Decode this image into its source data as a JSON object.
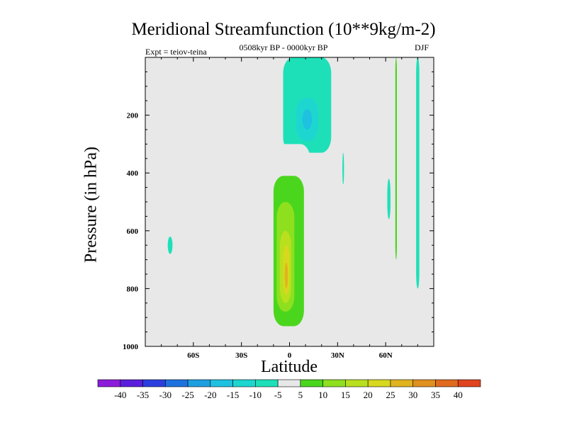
{
  "chart_data": {
    "type": "contour",
    "title": "Meridional Streamfunction (10**9kg/m-2)",
    "subtitle": "0508kyr BP - 0000kyr BP",
    "left_label": "Expt = teiov-teina",
    "right_label": "DJF",
    "xlabel": "Latitude",
    "ylabel": "Pressure (in hPa)",
    "xlim": [
      -90,
      90
    ],
    "ylim": [
      1000,
      0
    ],
    "x_ticks": [
      -60,
      -30,
      0,
      30,
      60
    ],
    "x_tick_labels": [
      "60S",
      "30S",
      "0",
      "30N",
      "60N"
    ],
    "y_ticks": [
      200,
      400,
      600,
      800,
      1000
    ],
    "y_tick_labels": [
      "200",
      "400",
      "600",
      "800",
      "1000"
    ],
    "missing_color": "#e8e8e8",
    "colorbar": {
      "labels": [
        "-40",
        "-35",
        "-30",
        "-25",
        "-20",
        "-15",
        "-10",
        "-5",
        "5",
        "10",
        "15",
        "20",
        "25",
        "30",
        "35",
        "40"
      ],
      "colors": [
        "#8c1cd9",
        "#5a1ddb",
        "#2b3fe0",
        "#1e72e0",
        "#1e9fe0",
        "#1ec1e0",
        "#1ed6d0",
        "#1ee0b8",
        "#e8e8e8",
        "#4bd61e",
        "#8ee01e",
        "#b8e01e",
        "#d8d81e",
        "#e0b41e",
        "#e0901e",
        "#e06a1e",
        "#e0441e"
      ]
    },
    "features": [
      {
        "name": "neg-cell-upper-tropics",
        "value": -5,
        "lat": [
          -4,
          26
        ],
        "p": [
          0,
          330
        ]
      },
      {
        "name": "neg-core-upper-tropics",
        "value": -10,
        "lat": [
          4,
          18
        ],
        "p": [
          140,
          290
        ]
      },
      {
        "name": "neg-core-inner",
        "value": -15,
        "lat": [
          8,
          14
        ],
        "p": [
          180,
          250
        ]
      },
      {
        "name": "neg-cell-70S",
        "value": -5,
        "lat": [
          -76,
          -73
        ],
        "p": [
          620,
          680
        ]
      },
      {
        "name": "neg-strip-35N",
        "value": -5,
        "lat": [
          33,
          34
        ],
        "p": [
          330,
          440
        ]
      },
      {
        "name": "neg-strip-62N",
        "value": -5,
        "lat": [
          61,
          63
        ],
        "p": [
          420,
          560
        ]
      },
      {
        "name": "neg-strip-80N",
        "value": -5,
        "lat": [
          79,
          81
        ],
        "p": [
          0,
          800
        ]
      },
      {
        "name": "pos-cell-15S-upper",
        "value": 5,
        "lat": [
          -30,
          -25
        ],
        "p": [
          200,
          460
        ]
      },
      {
        "name": "pos-cell-35S",
        "value": 5,
        "lat": [
          -37,
          -32
        ],
        "p": [
          470,
          900
        ]
      },
      {
        "name": "pos-cell-equator",
        "value": 5,
        "lat": [
          -12,
          13
        ],
        "p": [
          300,
          960
        ]
      },
      {
        "name": "pos-cell-equator-10",
        "value": 10,
        "lat": [
          -10,
          9
        ],
        "p": [
          410,
          930
        ]
      },
      {
        "name": "pos-cell-equator-15",
        "value": 15,
        "lat": [
          -8,
          3
        ],
        "p": [
          500,
          880
        ]
      },
      {
        "name": "pos-cell-equator-20",
        "value": 20,
        "lat": [
          -6,
          1
        ],
        "p": [
          600,
          850
        ]
      },
      {
        "name": "pos-cell-equator-25",
        "value": 25,
        "lat": [
          -4,
          0
        ],
        "p": [
          650,
          820
        ]
      },
      {
        "name": "pos-cell-equator-30",
        "value": 30,
        "lat": [
          -3,
          -1
        ],
        "p": [
          710,
          800
        ]
      },
      {
        "name": "pos-cell-55N",
        "value": 5,
        "lat": [
          53,
          55
        ],
        "p": [
          0,
          280
        ]
      },
      {
        "name": "pos-cell-65N",
        "value": 5,
        "lat": [
          65,
          68
        ],
        "p": [
          0,
          950
        ]
      },
      {
        "name": "pos-cell-65N-10",
        "value": 10,
        "lat": [
          66,
          67
        ],
        "p": [
          0,
          700
        ]
      }
    ]
  }
}
